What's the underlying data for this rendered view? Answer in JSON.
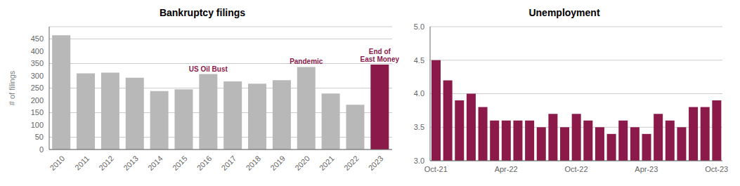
{
  "chart_data": [
    {
      "type": "bar",
      "title": "Bankruptcy filings",
      "ylabel": "# of filings",
      "categories": [
        "2010",
        "2011",
        "2012",
        "2013",
        "2014",
        "2015",
        "2016",
        "2017",
        "2018",
        "2019",
        "2020",
        "2021",
        "2022",
        "2023"
      ],
      "values": [
        465,
        310,
        313,
        292,
        238,
        245,
        307,
        277,
        268,
        282,
        336,
        228,
        182,
        346
      ],
      "colors": [
        "#b8b8b8",
        "#b8b8b8",
        "#b8b8b8",
        "#b8b8b8",
        "#b8b8b8",
        "#b8b8b8",
        "#b8b8b8",
        "#b8b8b8",
        "#b8b8b8",
        "#b8b8b8",
        "#b8b8b8",
        "#b8b8b8",
        "#b8b8b8",
        "#8b1a4a"
      ],
      "annotations": [
        {
          "category": "2016",
          "text": "US Oil Bust",
          "color": "#8b1a4a"
        },
        {
          "category": "2020",
          "text": "Pandemic",
          "color": "#8b1a4a"
        },
        {
          "category": "2023",
          "text": "End of\nEast Money",
          "color": "#8b1a4a"
        }
      ],
      "ylim": [
        0,
        500
      ],
      "yticks": [
        0,
        50,
        100,
        150,
        200,
        250,
        300,
        350,
        400,
        450
      ],
      "grid": true
    },
    {
      "type": "bar",
      "title": "Unemployment",
      "categories": [
        "Oct-21",
        null,
        null,
        null,
        null,
        null,
        "Apr-22",
        null,
        null,
        null,
        null,
        null,
        "Oct-22",
        null,
        null,
        null,
        null,
        null,
        "Apr-23",
        null,
        null,
        null,
        null,
        null,
        "Oct-23"
      ],
      "values": [
        4.5,
        4.2,
        3.9,
        4.0,
        3.8,
        3.6,
        3.6,
        3.6,
        3.6,
        3.5,
        3.7,
        3.5,
        3.7,
        3.6,
        3.5,
        3.4,
        3.6,
        3.5,
        3.4,
        3.7,
        3.6,
        3.5,
        3.8,
        3.8,
        3.9
      ],
      "color": "#8b1a4a",
      "ylim": [
        3.0,
        5.0
      ],
      "yticks": [
        {
          "value": 3.0,
          "label": "3.0"
        },
        3.5,
        {
          "value": 4.0,
          "label": "4.0"
        },
        4.5,
        {
          "value": 5.0,
          "label": "5.0"
        }
      ],
      "grid": true
    }
  ]
}
